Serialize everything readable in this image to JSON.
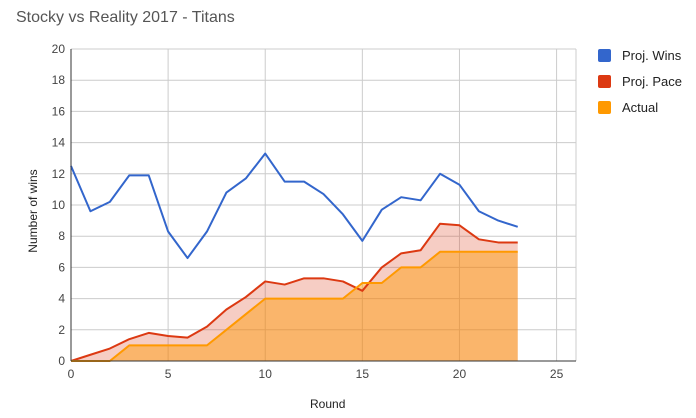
{
  "chart_data": {
    "type": "area",
    "title": "Stocky vs Reality 2017 - Titans",
    "xlabel": "Round",
    "ylabel": "Number of wins",
    "xlim": [
      0,
      26
    ],
    "ylim": [
      0,
      20
    ],
    "x_ticks": [
      0,
      5,
      10,
      15,
      20,
      25
    ],
    "y_ticks": [
      0,
      2,
      4,
      6,
      8,
      10,
      12,
      14,
      16,
      18,
      20
    ],
    "grid": true,
    "legend_position": "right",
    "x": [
      0,
      1,
      2,
      3,
      4,
      5,
      6,
      7,
      8,
      9,
      10,
      11,
      12,
      13,
      14,
      15,
      16,
      17,
      18,
      19,
      20,
      21,
      22,
      23
    ],
    "series": [
      {
        "name": "Proj. Wins",
        "color": "#3366cc",
        "style": "line",
        "values": [
          12.5,
          9.6,
          10.2,
          11.9,
          11.9,
          8.3,
          6.6,
          8.3,
          10.8,
          11.7,
          13.3,
          11.5,
          11.5,
          10.7,
          9.4,
          7.7,
          9.7,
          10.5,
          10.3,
          12.0,
          11.3,
          9.6,
          9.0,
          8.6
        ]
      },
      {
        "name": "Proj. Pace",
        "color": "#dc3912",
        "style": "area",
        "values": [
          0,
          0.4,
          0.8,
          1.4,
          1.8,
          1.6,
          1.5,
          2.2,
          3.3,
          4.1,
          5.1,
          4.9,
          5.3,
          5.3,
          5.1,
          4.5,
          6.0,
          6.9,
          7.1,
          8.8,
          8.7,
          7.8,
          7.6,
          7.6
        ]
      },
      {
        "name": "Actual",
        "color": "#ff9900",
        "style": "area",
        "values": [
          0,
          0,
          0,
          1,
          1,
          1,
          1,
          1,
          2,
          3,
          4,
          4,
          4,
          4,
          4,
          5,
          5,
          6,
          6,
          7,
          7,
          7,
          7,
          7
        ]
      }
    ]
  },
  "colors": {
    "grid": "#cccccc",
    "axis": "#333333",
    "tick_text": "#444444"
  }
}
